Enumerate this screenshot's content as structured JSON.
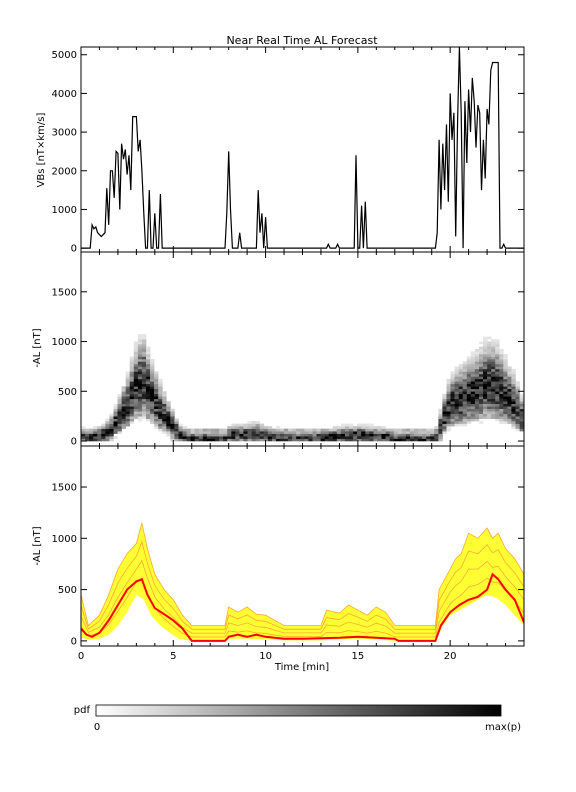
{
  "chart_data": [
    {
      "type": "line",
      "title": "Near Real Time AL Forecast",
      "ylabel": "VBs [nT×km/s]",
      "xlim": [
        0,
        24
      ],
      "ylim": [
        -100,
        5200
      ],
      "yticks": [
        "0",
        "1000",
        "2000",
        "3000",
        "4000",
        "5000"
      ],
      "grid": false,
      "series": [
        {
          "color": "#000000",
          "points": [
            [
              0,
              0
            ],
            [
              0.5,
              0
            ],
            [
              0.6,
              600
            ],
            [
              0.7,
              500
            ],
            [
              0.8,
              550
            ],
            [
              0.9,
              400
            ],
            [
              1.1,
              300
            ],
            [
              1.3,
              400
            ],
            [
              1.4,
              1550
            ],
            [
              1.5,
              600
            ],
            [
              1.6,
              2000
            ],
            [
              1.7,
              2000
            ],
            [
              1.8,
              1300
            ],
            [
              1.9,
              2500
            ],
            [
              2.0,
              2450
            ],
            [
              2.1,
              1000
            ],
            [
              2.2,
              2700
            ],
            [
              2.3,
              2300
            ],
            [
              2.4,
              2550
            ],
            [
              2.5,
              1900
            ],
            [
              2.6,
              2400
            ],
            [
              2.7,
              1500
            ],
            [
              2.8,
              3400
            ],
            [
              3.0,
              3400
            ],
            [
              3.1,
              2500
            ],
            [
              3.2,
              2800
            ],
            [
              3.3,
              2000
            ],
            [
              3.4,
              900
            ],
            [
              3.5,
              0
            ],
            [
              3.6,
              0
            ],
            [
              3.7,
              1500
            ],
            [
              3.8,
              0
            ],
            [
              3.9,
              0
            ],
            [
              4.0,
              900
            ],
            [
              4.1,
              0
            ],
            [
              4.2,
              0
            ],
            [
              4.3,
              1400
            ],
            [
              4.4,
              0
            ],
            [
              7.8,
              0
            ],
            [
              7.9,
              900
            ],
            [
              8.0,
              2500
            ],
            [
              8.1,
              1000
            ],
            [
              8.2,
              0
            ],
            [
              8.5,
              0
            ],
            [
              8.6,
              400
            ],
            [
              8.7,
              0
            ],
            [
              9.5,
              0
            ],
            [
              9.6,
              1500
            ],
            [
              9.7,
              400
            ],
            [
              9.8,
              900
            ],
            [
              9.9,
              0
            ],
            [
              10.0,
              800
            ],
            [
              10.1,
              0
            ],
            [
              13.3,
              0
            ],
            [
              13.4,
              100
            ],
            [
              13.5,
              0
            ],
            [
              13.8,
              0
            ],
            [
              13.9,
              100
            ],
            [
              14.0,
              0
            ],
            [
              14.8,
              0
            ],
            [
              14.9,
              2400
            ],
            [
              15.0,
              0
            ],
            [
              15.1,
              0
            ],
            [
              15.2,
              1100
            ],
            [
              15.3,
              0
            ],
            [
              15.4,
              1200
            ],
            [
              15.5,
              0
            ],
            [
              19.2,
              0
            ],
            [
              19.3,
              400
            ],
            [
              19.4,
              2800
            ],
            [
              19.5,
              1000
            ],
            [
              19.6,
              2700
            ],
            [
              19.7,
              1500
            ],
            [
              19.8,
              3200
            ],
            [
              19.9,
              1200
            ],
            [
              20.0,
              4000
            ],
            [
              20.1,
              2800
            ],
            [
              20.2,
              3500
            ],
            [
              20.3,
              300
            ],
            [
              20.4,
              3300
            ],
            [
              20.5,
              5200
            ],
            [
              20.6,
              3500
            ],
            [
              20.7,
              0
            ],
            [
              20.8,
              3800
            ],
            [
              20.9,
              2200
            ],
            [
              21.0,
              4100
            ],
            [
              21.1,
              3000
            ],
            [
              21.2,
              4400
            ],
            [
              21.3,
              3800
            ],
            [
              21.4,
              2600
            ],
            [
              21.5,
              3700
            ],
            [
              21.6,
              3500
            ],
            [
              21.7,
              1500
            ],
            [
              21.8,
              2800
            ],
            [
              21.9,
              1800
            ],
            [
              22.0,
              3600
            ],
            [
              22.1,
              3200
            ],
            [
              22.2,
              4600
            ],
            [
              22.3,
              4800
            ],
            [
              22.6,
              4800
            ],
            [
              22.7,
              0
            ],
            [
              22.8,
              0
            ],
            [
              22.9,
              100
            ],
            [
              23.0,
              0
            ],
            [
              24,
              0
            ]
          ]
        }
      ]
    },
    {
      "type": "heatmap",
      "ylabel": "-AL [nT]",
      "xlim": [
        0,
        24
      ],
      "ylim": [
        -50,
        1900
      ],
      "yticks": [
        "0",
        "500",
        "1000",
        "1500"
      ],
      "grid": false,
      "color_scale": {
        "low": "#ffffff",
        "high": "#000000"
      },
      "typical_al": [
        [
          0,
          30
        ],
        [
          0.5,
          20
        ],
        [
          1,
          40
        ],
        [
          1.5,
          80
        ],
        [
          2,
          200
        ],
        [
          2.5,
          350
        ],
        [
          3,
          550
        ],
        [
          3.4,
          600
        ],
        [
          3.8,
          450
        ],
        [
          4.3,
          300
        ],
        [
          4.8,
          180
        ],
        [
          5.3,
          60
        ],
        [
          5.8,
          10
        ],
        [
          7.8,
          10
        ],
        [
          8.0,
          40
        ],
        [
          8.5,
          60
        ],
        [
          9,
          50
        ],
        [
          9.5,
          70
        ],
        [
          10,
          40
        ],
        [
          11,
          20
        ],
        [
          12,
          15
        ],
        [
          13,
          20
        ],
        [
          14,
          40
        ],
        [
          15,
          50
        ],
        [
          16,
          40
        ],
        [
          16.8,
          20
        ],
        [
          17.2,
          10
        ],
        [
          19.2,
          10
        ],
        [
          19.6,
          200
        ],
        [
          20,
          350
        ],
        [
          20.5,
          400
        ],
        [
          21,
          450
        ],
        [
          21.5,
          500
        ],
        [
          22,
          560
        ],
        [
          22.5,
          550
        ],
        [
          23,
          450
        ],
        [
          23.5,
          350
        ],
        [
          24,
          180
        ]
      ]
    },
    {
      "type": "area",
      "xlabel": "Time [min]",
      "ylabel": "-AL [nT]",
      "xlim": [
        0,
        24
      ],
      "xticks": [
        "0",
        "5",
        "10",
        "15",
        "20"
      ],
      "ylim": [
        -50,
        1900
      ],
      "yticks": [
        "0",
        "500",
        "1000",
        "1500"
      ],
      "grid": false,
      "colors": {
        "band_fill": "#ffff33",
        "band_lines": "#ffaa33",
        "median": "#ff0000"
      },
      "band_upper": [
        [
          0,
          450
        ],
        [
          0.4,
          150
        ],
        [
          1,
          250
        ],
        [
          1.5,
          450
        ],
        [
          2,
          700
        ],
        [
          2.5,
          850
        ],
        [
          3,
          950
        ],
        [
          3.3,
          1150
        ],
        [
          3.6,
          900
        ],
        [
          4,
          650
        ],
        [
          4.5,
          500
        ],
        [
          5,
          400
        ],
        [
          5.5,
          250
        ],
        [
          6,
          150
        ],
        [
          7.8,
          150
        ],
        [
          8,
          330
        ],
        [
          8.5,
          280
        ],
        [
          9,
          330
        ],
        [
          9.5,
          260
        ],
        [
          10,
          250
        ],
        [
          10.5,
          200
        ],
        [
          11,
          150
        ],
        [
          13,
          150
        ],
        [
          13.3,
          300
        ],
        [
          14,
          270
        ],
        [
          14.5,
          350
        ],
        [
          15,
          300
        ],
        [
          15.5,
          250
        ],
        [
          16,
          330
        ],
        [
          16.5,
          280
        ],
        [
          17,
          150
        ],
        [
          19.2,
          150
        ],
        [
          19.4,
          500
        ],
        [
          20,
          700
        ],
        [
          20.3,
          800
        ],
        [
          20.6,
          850
        ],
        [
          21,
          1050
        ],
        [
          21.5,
          1000
        ],
        [
          22,
          1100
        ],
        [
          22.3,
          1000
        ],
        [
          22.6,
          1050
        ],
        [
          23,
          900
        ],
        [
          23.5,
          800
        ],
        [
          24,
          650
        ]
      ],
      "band_lower": [
        [
          0,
          30
        ],
        [
          0.5,
          10
        ],
        [
          1,
          20
        ],
        [
          1.5,
          60
        ],
        [
          2,
          150
        ],
        [
          2.5,
          280
        ],
        [
          3,
          450
        ],
        [
          3.4,
          400
        ],
        [
          3.8,
          250
        ],
        [
          4.3,
          150
        ],
        [
          4.8,
          80
        ],
        [
          5.3,
          20
        ],
        [
          6,
          0
        ],
        [
          7.8,
          0
        ],
        [
          8,
          20
        ],
        [
          9,
          20
        ],
        [
          10,
          15
        ],
        [
          11,
          5
        ],
        [
          13,
          5
        ],
        [
          14,
          15
        ],
        [
          15,
          20
        ],
        [
          16,
          15
        ],
        [
          17,
          0
        ],
        [
          19.2,
          0
        ],
        [
          19.6,
          150
        ],
        [
          20,
          250
        ],
        [
          20.5,
          300
        ],
        [
          21,
          350
        ],
        [
          21.5,
          400
        ],
        [
          22,
          450
        ],
        [
          22.5,
          420
        ],
        [
          23,
          350
        ],
        [
          24,
          150
        ]
      ],
      "median": [
        [
          0,
          120
        ],
        [
          0.3,
          60
        ],
        [
          0.6,
          40
        ],
        [
          1,
          80
        ],
        [
          1.5,
          200
        ],
        [
          2,
          350
        ],
        [
          2.5,
          500
        ],
        [
          3,
          580
        ],
        [
          3.3,
          600
        ],
        [
          3.6,
          450
        ],
        [
          4,
          320
        ],
        [
          4.5,
          260
        ],
        [
          5,
          200
        ],
        [
          5.5,
          120
        ],
        [
          6,
          0
        ],
        [
          7.8,
          0
        ],
        [
          8,
          40
        ],
        [
          8.5,
          60
        ],
        [
          9,
          40
        ],
        [
          9.5,
          60
        ],
        [
          10,
          40
        ],
        [
          11,
          20
        ],
        [
          12,
          20
        ],
        [
          13,
          25
        ],
        [
          14,
          30
        ],
        [
          15,
          40
        ],
        [
          16,
          30
        ],
        [
          17,
          20
        ],
        [
          17.2,
          0
        ],
        [
          19.2,
          0
        ],
        [
          19.5,
          150
        ],
        [
          20,
          280
        ],
        [
          20.5,
          350
        ],
        [
          21,
          400
        ],
        [
          21.5,
          430
        ],
        [
          22,
          500
        ],
        [
          22.3,
          650
        ],
        [
          22.6,
          600
        ],
        [
          23,
          500
        ],
        [
          23.5,
          400
        ],
        [
          24,
          180
        ]
      ]
    }
  ],
  "colorbar": {
    "label": "pdf",
    "min_label": "0",
    "max_label": "max(p)",
    "colors": {
      "start": "#ffffff",
      "end": "#000000"
    }
  }
}
